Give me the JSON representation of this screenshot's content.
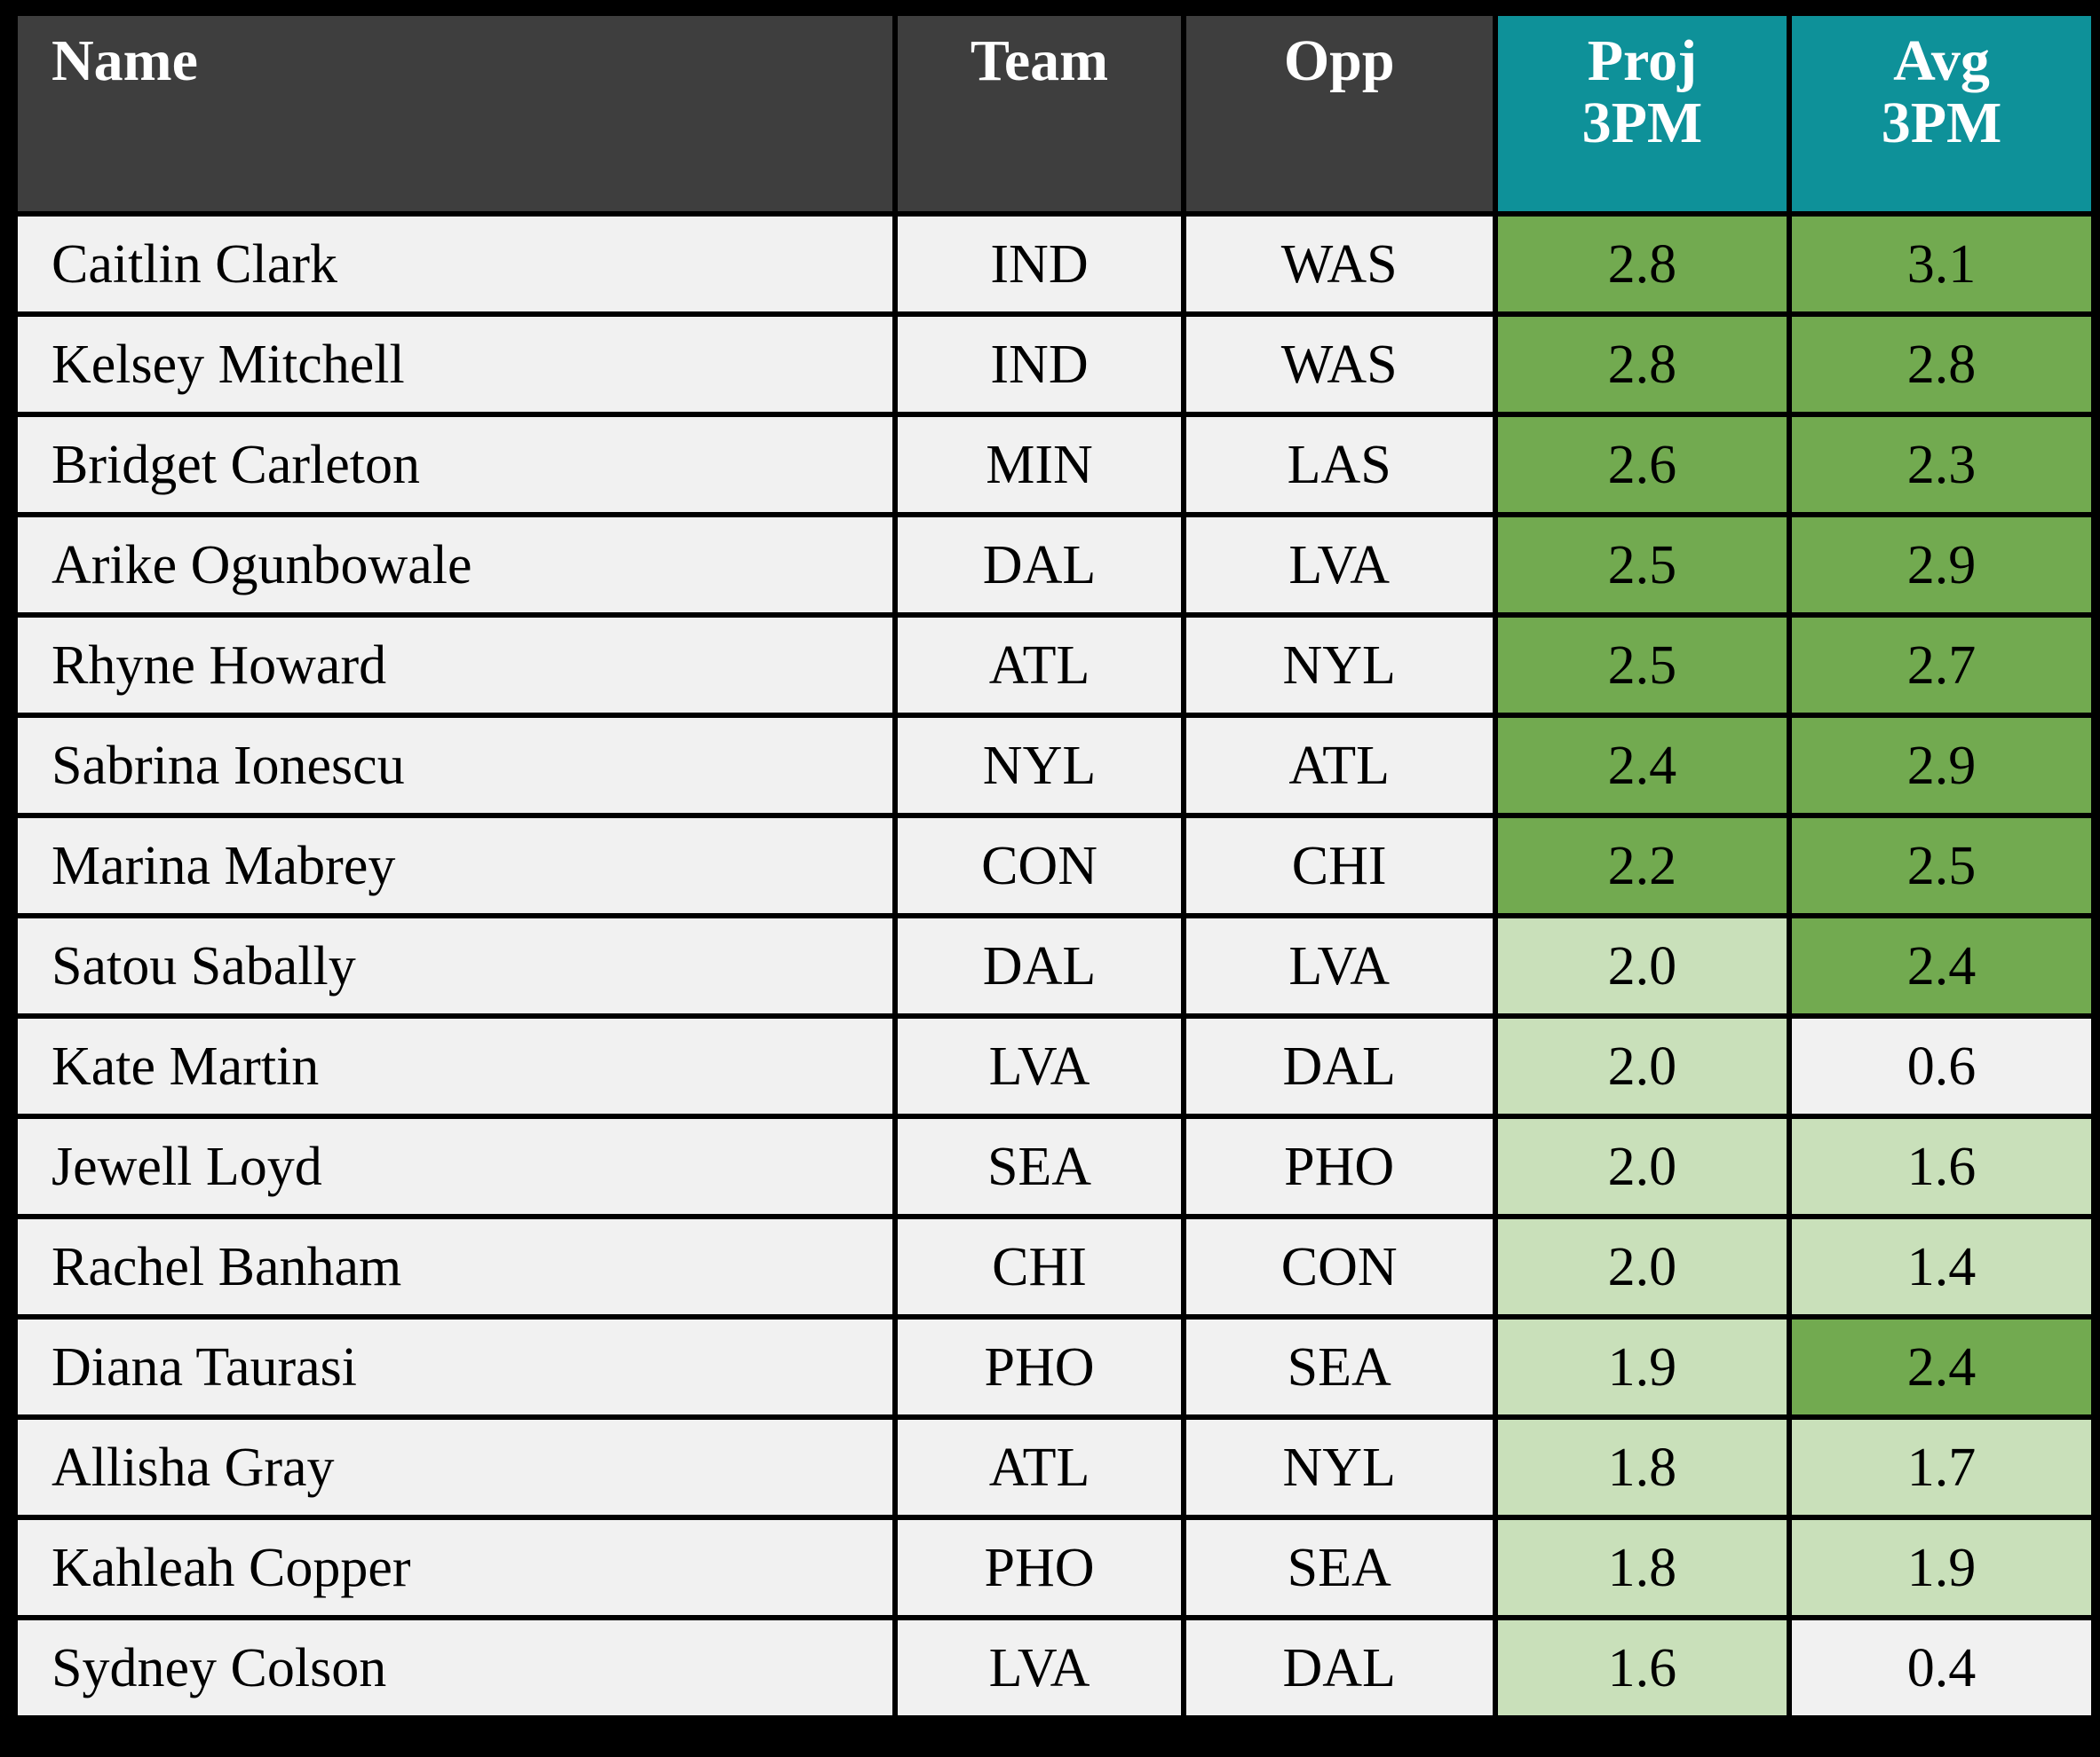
{
  "table": {
    "columns": [
      {
        "key": "name",
        "label": "Name"
      },
      {
        "key": "team",
        "label": "Team"
      },
      {
        "key": "opp",
        "label": "Opp"
      },
      {
        "key": "proj",
        "label": "Proj 3PM",
        "label_line1": "Proj",
        "label_line2": "3PM"
      },
      {
        "key": "avg",
        "label": "Avg 3PM",
        "label_line1": "Avg",
        "label_line2": "3PM"
      }
    ],
    "rows": [
      {
        "name": "Caitlin Clark",
        "team": "IND",
        "opp": "WAS",
        "proj": "2.8",
        "proj_tone": "high",
        "avg": "3.1",
        "avg_tone": "high"
      },
      {
        "name": "Kelsey Mitchell",
        "team": "IND",
        "opp": "WAS",
        "proj": "2.8",
        "proj_tone": "high",
        "avg": "2.8",
        "avg_tone": "high"
      },
      {
        "name": "Bridget Carleton",
        "team": "MIN",
        "opp": "LAS",
        "proj": "2.6",
        "proj_tone": "high",
        "avg": "2.3",
        "avg_tone": "high"
      },
      {
        "name": "Arike Ogunbowale",
        "team": "DAL",
        "opp": "LVA",
        "proj": "2.5",
        "proj_tone": "high",
        "avg": "2.9",
        "avg_tone": "high"
      },
      {
        "name": "Rhyne Howard",
        "team": "ATL",
        "opp": "NYL",
        "proj": "2.5",
        "proj_tone": "high",
        "avg": "2.7",
        "avg_tone": "high"
      },
      {
        "name": "Sabrina Ionescu",
        "team": "NYL",
        "opp": "ATL",
        "proj": "2.4",
        "proj_tone": "high",
        "avg": "2.9",
        "avg_tone": "high"
      },
      {
        "name": "Marina Mabrey",
        "team": "CON",
        "opp": "CHI",
        "proj": "2.2",
        "proj_tone": "high",
        "avg": "2.5",
        "avg_tone": "high"
      },
      {
        "name": "Satou Sabally",
        "team": "DAL",
        "opp": "LVA",
        "proj": "2.0",
        "proj_tone": "mid",
        "avg": "2.4",
        "avg_tone": "high"
      },
      {
        "name": "Kate Martin",
        "team": "LVA",
        "opp": "DAL",
        "proj": "2.0",
        "proj_tone": "mid",
        "avg": "0.6",
        "avg_tone": "low"
      },
      {
        "name": "Jewell Loyd",
        "team": "SEA",
        "opp": "PHO",
        "proj": "2.0",
        "proj_tone": "mid",
        "avg": "1.6",
        "avg_tone": "mid"
      },
      {
        "name": "Rachel Banham",
        "team": "CHI",
        "opp": "CON",
        "proj": "2.0",
        "proj_tone": "mid",
        "avg": "1.4",
        "avg_tone": "mid"
      },
      {
        "name": "Diana Taurasi",
        "team": "PHO",
        "opp": "SEA",
        "proj": "1.9",
        "proj_tone": "mid",
        "avg": "2.4",
        "avg_tone": "high"
      },
      {
        "name": "Allisha Gray",
        "team": "ATL",
        "opp": "NYL",
        "proj": "1.8",
        "proj_tone": "mid",
        "avg": "1.7",
        "avg_tone": "mid"
      },
      {
        "name": "Kahleah Copper",
        "team": "PHO",
        "opp": "SEA",
        "proj": "1.8",
        "proj_tone": "mid",
        "avg": "1.9",
        "avg_tone": "mid"
      },
      {
        "name": "Sydney Colson",
        "team": "LVA",
        "opp": "DAL",
        "proj": "1.6",
        "proj_tone": "mid",
        "avg": "0.4",
        "avg_tone": "low"
      }
    ]
  },
  "chart_data": {
    "type": "table",
    "title": "",
    "columns": [
      "Name",
      "Team",
      "Opp",
      "Proj 3PM",
      "Avg 3PM"
    ],
    "rows": [
      [
        "Caitlin Clark",
        "IND",
        "WAS",
        2.8,
        3.1
      ],
      [
        "Kelsey Mitchell",
        "IND",
        "WAS",
        2.8,
        2.8
      ],
      [
        "Bridget Carleton",
        "MIN",
        "LAS",
        2.6,
        2.3
      ],
      [
        "Arike Ogunbowale",
        "DAL",
        "LVA",
        2.5,
        2.9
      ],
      [
        "Rhyne Howard",
        "ATL",
        "NYL",
        2.5,
        2.7
      ],
      [
        "Sabrina Ionescu",
        "NYL",
        "ATL",
        2.4,
        2.9
      ],
      [
        "Marina Mabrey",
        "CON",
        "CHI",
        2.2,
        2.5
      ],
      [
        "Satou Sabally",
        "DAL",
        "LVA",
        2.0,
        2.4
      ],
      [
        "Kate Martin",
        "LVA",
        "DAL",
        2.0,
        0.6
      ],
      [
        "Jewell Loyd",
        "SEA",
        "PHO",
        2.0,
        1.6
      ],
      [
        "Rachel Banham",
        "CHI",
        "CON",
        2.0,
        1.4
      ],
      [
        "Diana Taurasi",
        "PHO",
        "SEA",
        1.9,
        2.4
      ],
      [
        "Allisha Gray",
        "ATL",
        "NYL",
        1.8,
        1.7
      ],
      [
        "Kahleah Copper",
        "PHO",
        "SEA",
        1.8,
        1.9
      ],
      [
        "Sydney Colson",
        "LVA",
        "DAL",
        1.6,
        0.4
      ]
    ],
    "cell_shading": {
      "legend": "conditional formatting on Proj 3PM and Avg 3PM",
      "high_green_threshold": 2.2,
      "light_green_range": [
        1.4,
        2.0
      ],
      "plain_below": 1.0
    }
  },
  "colors": {
    "outer_bg": "#000000",
    "header_dark": "#3e3e3e",
    "header_teal": "#0e9199",
    "row_bg": "#f1f1f1",
    "value_high": "#72aa50",
    "value_mid": "#c9e0ba",
    "header_text": "#ffffff",
    "body_text": "#000000",
    "border": "#000000"
  }
}
